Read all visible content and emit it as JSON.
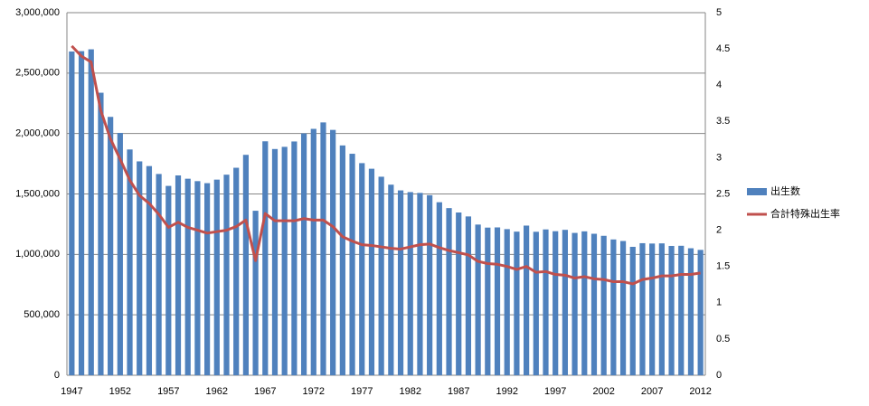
{
  "chart_data": {
    "type": "bar-line",
    "categories": [
      "1947",
      null,
      null,
      null,
      null,
      "1952",
      null,
      null,
      null,
      null,
      "1957",
      null,
      null,
      null,
      null,
      "1962",
      null,
      null,
      null,
      null,
      "1967",
      null,
      null,
      null,
      null,
      "1972",
      null,
      null,
      null,
      null,
      "1977",
      null,
      null,
      null,
      null,
      "1982",
      null,
      null,
      null,
      null,
      "1987",
      null,
      null,
      null,
      null,
      "1992",
      null,
      null,
      null,
      null,
      "1997",
      null,
      null,
      null,
      null,
      "2002",
      null,
      null,
      null,
      null,
      "2007",
      null,
      null,
      null,
      null,
      "2012"
    ],
    "series": [
      {
        "name": "出生数",
        "color": "#4f81bd",
        "type": "bar",
        "values": [
          2678792,
          2681624,
          2696638,
          2337507,
          2137689,
          2005162,
          1868040,
          1769580,
          1730692,
          1665278,
          1566713,
          1653469,
          1626088,
          1606041,
          1589372,
          1618616,
          1659521,
          1716761,
          1823697,
          1360974,
          1935647,
          1871839,
          1889815,
          1934239,
          2000973,
          2038682,
          2091983,
          2029989,
          1901440,
          1832617,
          1755100,
          1708643,
          1642580,
          1576889,
          1529455,
          1515392,
          1508687,
          1489780,
          1431577,
          1382946,
          1346658,
          1314006,
          1246802,
          1221585,
          1223245,
          1208989,
          1188282,
          1238328,
          1187064,
          1206555,
          1191665,
          1203147,
          1177669,
          1190547,
          1170662,
          1153855,
          1123610,
          1110721,
          1062530,
          1092674,
          1089818,
          1091156,
          1070035,
          1071304,
          1050806,
          1037231
        ]
      },
      {
        "name": "合計特殊出生率",
        "color": "#c0504d",
        "type": "line",
        "axis": "y2",
        "values": [
          4.54,
          4.4,
          4.32,
          3.65,
          3.26,
          2.98,
          2.69,
          2.48,
          2.37,
          2.22,
          2.04,
          2.11,
          2.04,
          2.0,
          1.96,
          1.98,
          2.0,
          2.05,
          2.14,
          1.58,
          2.23,
          2.13,
          2.13,
          2.13,
          2.16,
          2.14,
          2.14,
          2.05,
          1.91,
          1.85,
          1.8,
          1.79,
          1.77,
          1.75,
          1.74,
          1.77,
          1.8,
          1.81,
          1.76,
          1.72,
          1.69,
          1.66,
          1.57,
          1.54,
          1.53,
          1.5,
          1.46,
          1.5,
          1.42,
          1.43,
          1.39,
          1.38,
          1.34,
          1.36,
          1.33,
          1.32,
          1.29,
          1.29,
          1.26,
          1.32,
          1.34,
          1.37,
          1.37,
          1.39,
          1.39,
          1.41
        ]
      }
    ],
    "ylim": [
      0,
      3000000
    ],
    "yticks": [
      0,
      {
        "value": 500000,
        "label": "500,000"
      },
      {
        "value": 1000000,
        "label": "1,000,000"
      },
      {
        "value": 1500000,
        "label": "1,500,000"
      },
      {
        "value": 2000000,
        "label": "2,000,000"
      },
      {
        "value": 2500000,
        "label": "2,500,000"
      },
      {
        "value": 3000000,
        "label": "3,000,000"
      }
    ],
    "y2lim": [
      0,
      5
    ],
    "y2ticks": [
      0,
      0.5,
      1,
      1.5,
      2,
      2.5,
      3,
      3.5,
      4,
      4.5,
      5
    ],
    "grid": true,
    "legend": "right"
  }
}
